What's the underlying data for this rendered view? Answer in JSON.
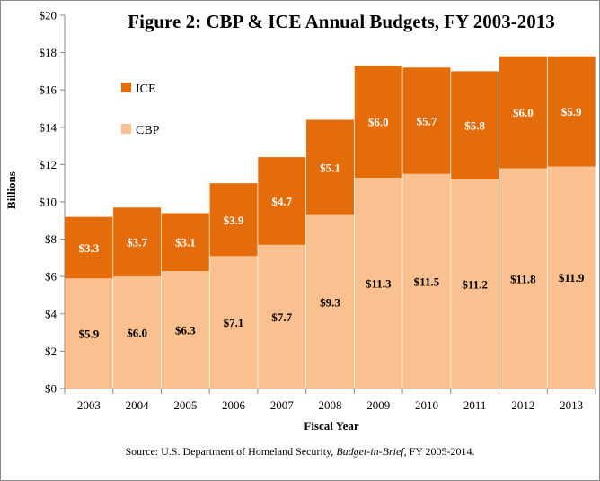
{
  "chart_data": {
    "type": "bar",
    "stacked": true,
    "title": "Figure 2: CBP & ICE Annual  Budgets, FY 2003-2013",
    "xlabel": "Fiscal Year",
    "ylabel": "Billions",
    "ylim": [
      0,
      20
    ],
    "yticks": [
      "$0",
      "$2",
      "$4",
      "$6",
      "$8",
      "$10",
      "$12",
      "$14",
      "$16",
      "$18",
      "$20"
    ],
    "categories": [
      "2003",
      "2004",
      "2005",
      "2006",
      "2007",
      "2008",
      "2009",
      "2010",
      "2011",
      "2012",
      "2013"
    ],
    "series": [
      {
        "name": "CBP",
        "color": "#FAC090",
        "values": [
          5.9,
          6.0,
          6.3,
          7.1,
          7.7,
          9.3,
          11.3,
          11.5,
          11.2,
          11.8,
          11.9
        ],
        "labels": [
          "$5.9",
          "$6.0",
          "$6.3",
          "$7.1",
          "$7.7",
          "$9.3",
          "$11.3",
          "$11.5",
          "$11.2",
          "$11.8",
          "$11.9"
        ]
      },
      {
        "name": "ICE",
        "color": "#E46C0A",
        "values": [
          3.3,
          3.7,
          3.1,
          3.9,
          4.7,
          5.1,
          6.0,
          5.7,
          5.8,
          6.0,
          5.9
        ],
        "labels": [
          "$3.3",
          "$3.7",
          "$3.1",
          "$3.9",
          "$4.7",
          "$5.1",
          "$6.0",
          "$5.7",
          "$5.8",
          "$6.0",
          "$5.9"
        ]
      }
    ],
    "legend": [
      {
        "name": "ICE",
        "color": "#E46C0A"
      },
      {
        "name": "CBP",
        "color": "#FAC090"
      }
    ],
    "legend_position": "top-left",
    "grid": false
  },
  "source": {
    "prefix": "Source: U.S. Department of Homeland Security, ",
    "italic": "Budget-in-Brief",
    "suffix": ", FY  2005-2014."
  }
}
